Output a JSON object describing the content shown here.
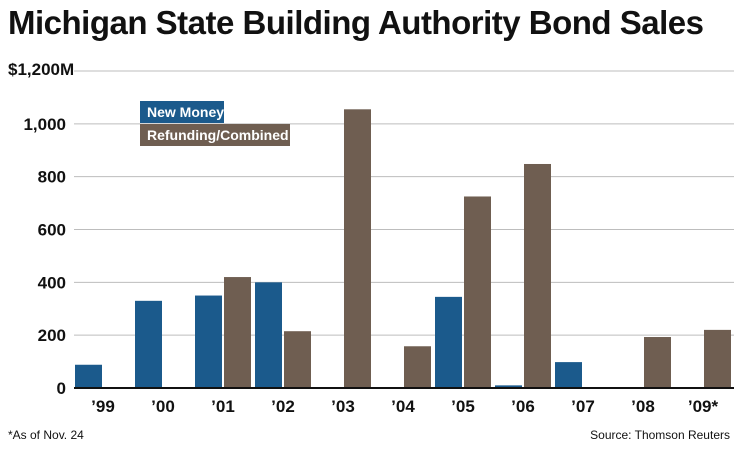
{
  "header": {
    "title": "Michigan State Building Authority Bond Sales"
  },
  "footer": {
    "footnote": "*As of Nov. 24",
    "source": "Source: Thomson Reuters"
  },
  "colors": {
    "new_money": "#1b5a8c",
    "refunding": "#6f5e51",
    "grid": "#bdbdbd",
    "axis": "#111111"
  },
  "chart_data": {
    "type": "bar",
    "title": "Michigan State Building Authority Bond Sales",
    "categories": [
      "’99",
      "’00",
      "’01",
      "’02",
      "’03",
      "’04",
      "’05",
      "’06",
      "’07",
      "’08",
      "’09*"
    ],
    "series": [
      {
        "name": "New Money",
        "values": [
          88,
          330,
          350,
          400,
          0,
          0,
          345,
          10,
          98,
          0,
          0
        ]
      },
      {
        "name": "Refunding/Combined",
        "values": [
          0,
          0,
          420,
          215,
          1055,
          158,
          725,
          848,
          0,
          193,
          220
        ]
      }
    ],
    "ylim": [
      0,
      1200
    ],
    "yticks": [
      0,
      200,
      400,
      600,
      800,
      1000
    ],
    "ytick_labels": [
      "0",
      "200",
      "400",
      "600",
      "800",
      "1,000"
    ],
    "ymax_label": "$1,200M",
    "grid": true,
    "legend_position": "top-left"
  }
}
